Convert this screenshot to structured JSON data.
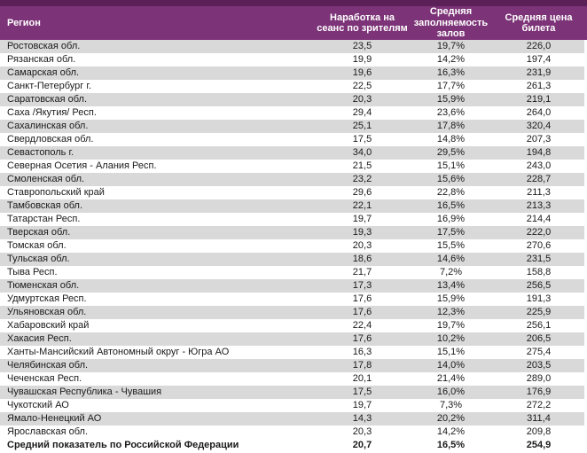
{
  "colors": {
    "accent_dark": "#5B2057",
    "header_bg": "#7C3377",
    "stripe": "#D9D9D9",
    "header_text": "#FFFFFF",
    "body_text": "#1A1A1A"
  },
  "header": {
    "region": "Регион",
    "viewers": "Наработка на сеанс по зрителям",
    "occupancy": "Средняя заполняемость залов",
    "price": "Средняя цена билета"
  },
  "rows": [
    {
      "region": "Ростовская обл.",
      "viewers": "23,5",
      "occupancy": "19,7%",
      "price": "226,0"
    },
    {
      "region": "Рязанская обл.",
      "viewers": "19,9",
      "occupancy": "14,2%",
      "price": "197,4"
    },
    {
      "region": "Самарская обл.",
      "viewers": "19,6",
      "occupancy": "16,3%",
      "price": "231,9"
    },
    {
      "region": "Санкт-Петербург г.",
      "viewers": "22,5",
      "occupancy": "17,7%",
      "price": "261,3"
    },
    {
      "region": "Саратовская обл.",
      "viewers": "20,3",
      "occupancy": "15,9%",
      "price": "219,1"
    },
    {
      "region": "Саха /Якутия/ Респ.",
      "viewers": "29,4",
      "occupancy": "23,6%",
      "price": "264,0"
    },
    {
      "region": "Сахалинская обл.",
      "viewers": "25,1",
      "occupancy": "17,8%",
      "price": "320,4"
    },
    {
      "region": "Свердловская обл.",
      "viewers": "17,5",
      "occupancy": "14,8%",
      "price": "207,3"
    },
    {
      "region": "Севастополь г.",
      "viewers": "34,0",
      "occupancy": "29,5%",
      "price": "194,8"
    },
    {
      "region": "Северная Осетия - Алания Респ.",
      "viewers": "21,5",
      "occupancy": "15,1%",
      "price": "243,0"
    },
    {
      "region": "Смоленская обл.",
      "viewers": "23,2",
      "occupancy": "15,6%",
      "price": "228,7"
    },
    {
      "region": "Ставропольский край",
      "viewers": "29,6",
      "occupancy": "22,8%",
      "price": "211,3"
    },
    {
      "region": "Тамбовская обл.",
      "viewers": "22,1",
      "occupancy": "16,5%",
      "price": "213,3"
    },
    {
      "region": "Татарстан Респ.",
      "viewers": "19,7",
      "occupancy": "16,9%",
      "price": "214,4"
    },
    {
      "region": "Тверская обл.",
      "viewers": "19,3",
      "occupancy": "17,5%",
      "price": "222,0"
    },
    {
      "region": "Томская обл.",
      "viewers": "20,3",
      "occupancy": "15,5%",
      "price": "270,6"
    },
    {
      "region": "Тульская обл.",
      "viewers": "18,6",
      "occupancy": "14,6%",
      "price": "231,5"
    },
    {
      "region": "Тыва Респ.",
      "viewers": "21,7",
      "occupancy": "7,2%",
      "price": "158,8"
    },
    {
      "region": "Тюменская обл.",
      "viewers": "17,3",
      "occupancy": "13,4%",
      "price": "256,5"
    },
    {
      "region": "Удмуртская Респ.",
      "viewers": "17,6",
      "occupancy": "15,9%",
      "price": "191,3"
    },
    {
      "region": "Ульяновская обл.",
      "viewers": "17,6",
      "occupancy": "12,3%",
      "price": "225,9"
    },
    {
      "region": "Хабаровский край",
      "viewers": "22,4",
      "occupancy": "19,7%",
      "price": "256,1"
    },
    {
      "region": "Хакасия Респ.",
      "viewers": "17,6",
      "occupancy": "10,2%",
      "price": "206,5"
    },
    {
      "region": "Ханты-Мансийский Автономный округ - Югра АО",
      "viewers": "16,3",
      "occupancy": "15,1%",
      "price": "275,4"
    },
    {
      "region": "Челябинская обл.",
      "viewers": "17,8",
      "occupancy": "14,0%",
      "price": "203,5"
    },
    {
      "region": "Чеченская Респ.",
      "viewers": "20,1",
      "occupancy": "21,4%",
      "price": "289,0"
    },
    {
      "region": "Чувашская Республика - Чувашия",
      "viewers": "17,5",
      "occupancy": "16,0%",
      "price": "176,9"
    },
    {
      "region": "Чукотский АО",
      "viewers": "19,7",
      "occupancy": "7,3%",
      "price": "272,2"
    },
    {
      "region": "Ямало-Ненецкий АО",
      "viewers": "14,3",
      "occupancy": "20,2%",
      "price": "311,4"
    },
    {
      "region": "Ярославская обл.",
      "viewers": "20,3",
      "occupancy": "14,2%",
      "price": "209,8"
    }
  ],
  "summary_row": {
    "region": "Средний показатель по Российской Федерации",
    "viewers": "20,7",
    "occupancy": "16,5%",
    "price": "254,9"
  }
}
